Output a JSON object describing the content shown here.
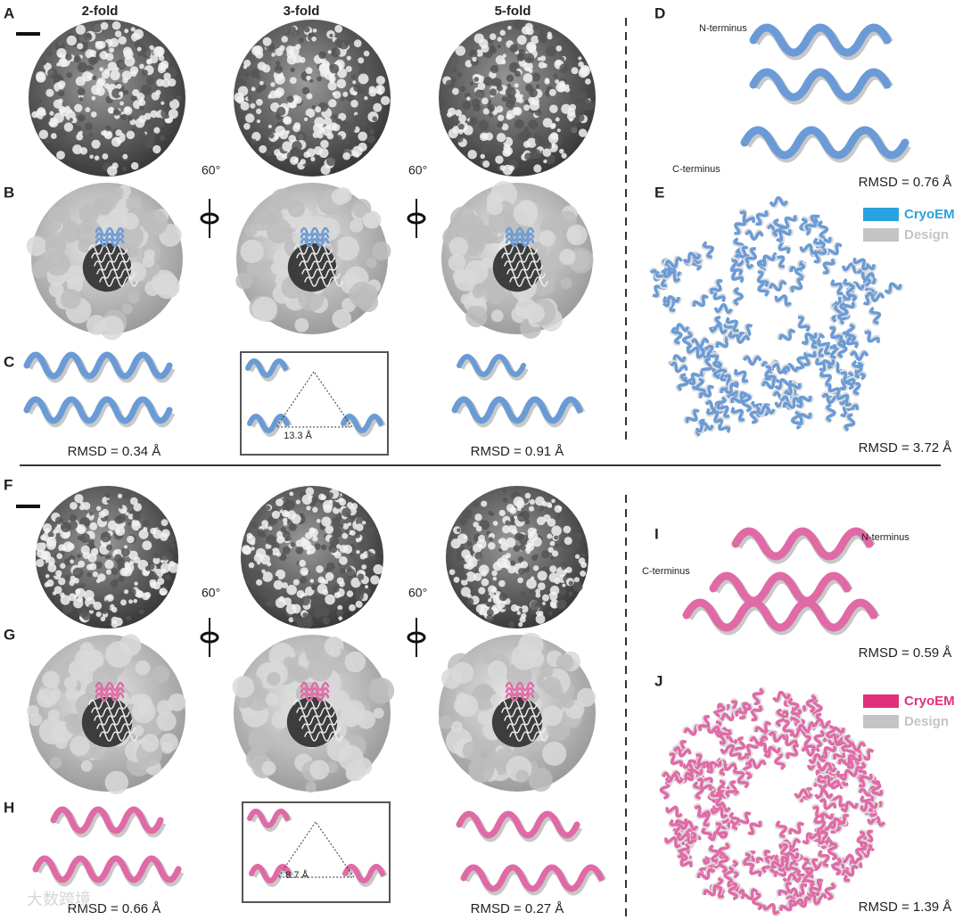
{
  "panel_labels": [
    "A",
    "B",
    "C",
    "D",
    "E",
    "F",
    "G",
    "H",
    "I",
    "J"
  ],
  "column_headers": [
    "2-fold",
    "3-fold",
    "5-fold"
  ],
  "rotations": [
    "60°",
    "60°",
    "60°",
    "60°"
  ],
  "top": {
    "interface_rmsd": [
      "RMSD = 0.34 Å",
      "RMSD = 0.91 Å"
    ],
    "distance": "13.3 Å",
    "monomer": {
      "n_terminus": "N-terminus",
      "c_terminus": "C-terminus",
      "rmsd": "RMSD = 0.76 Å"
    },
    "assembly": {
      "legend": [
        "CryoEM",
        "Design"
      ],
      "rmsd": "RMSD = 3.72 Å"
    }
  },
  "bottom": {
    "interface_rmsd": [
      "RMSD = 0.66 Å",
      "RMSD = 0.27 Å"
    ],
    "distance": "8.7 Å",
    "monomer": {
      "n_terminus": "N-terminus",
      "c_terminus": "C-terminus",
      "rmsd": "RMSD = 0.59 Å"
    },
    "assembly": {
      "legend": [
        "CryoEM",
        "Design"
      ],
      "rmsd": "RMSD = 1.39 Å"
    }
  },
  "watermark": "大数跨境"
}
